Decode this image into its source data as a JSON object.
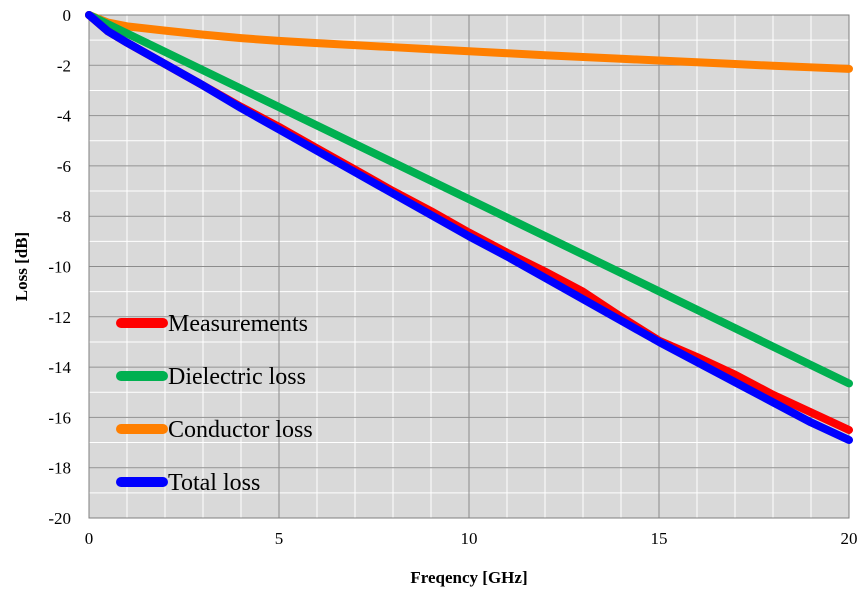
{
  "chart_data": {
    "type": "line",
    "xlabel": "Freqency [GHz]",
    "ylabel": "Loss [dB]",
    "xlim": [
      0,
      20
    ],
    "ylim": [
      -20,
      0
    ],
    "x_major_ticks": [
      0,
      5,
      10,
      15,
      20
    ],
    "y_major_ticks": [
      0,
      -2,
      -4,
      -6,
      -8,
      -10,
      -12,
      -14,
      -16,
      -18,
      -20
    ],
    "x_tick_labels": [
      "0",
      "5",
      "10",
      "15",
      "20"
    ],
    "y_tick_labels": [
      "0",
      "-2",
      "-4",
      "-6",
      "-8",
      "-10",
      "-12",
      "-14",
      "-16",
      "-18",
      "-20"
    ],
    "x_minor_step": 1,
    "y_minor_step": 1,
    "grid": true,
    "plot_background": "#d9d9d9",
    "legend_position": "lower-left",
    "series": [
      {
        "name": "Measurements",
        "color": "#ff0000",
        "x": [
          0,
          0.5,
          1,
          2,
          3,
          4,
          5,
          6,
          7,
          8,
          9,
          10,
          11,
          12,
          13,
          14,
          15,
          16,
          17,
          18,
          19,
          20
        ],
        "y": [
          0,
          -0.65,
          -1.1,
          -1.95,
          -2.8,
          -3.65,
          -4.45,
          -5.3,
          -6.15,
          -7.0,
          -7.8,
          -8.65,
          -9.45,
          -10.2,
          -11.0,
          -12.0,
          -12.95,
          -13.6,
          -14.3,
          -15.1,
          -15.8,
          -16.5
        ]
      },
      {
        "name": "Dielectric loss",
        "color": "#00b050",
        "x": [
          0,
          20
        ],
        "y": [
          0,
          -14.65
        ]
      },
      {
        "name": "Conductor loss",
        "color": "#ff7f00",
        "x": [
          0,
          0.5,
          1,
          2,
          3,
          4,
          5,
          6,
          7,
          8,
          9,
          10,
          11,
          12,
          13,
          14,
          15,
          16,
          17,
          18,
          19,
          20
        ],
        "y": [
          0,
          -0.3,
          -0.45,
          -0.62,
          -0.78,
          -0.92,
          -1.03,
          -1.12,
          -1.2,
          -1.28,
          -1.36,
          -1.44,
          -1.52,
          -1.6,
          -1.67,
          -1.74,
          -1.81,
          -1.88,
          -1.95,
          -2.02,
          -2.08,
          -2.14
        ]
      },
      {
        "name": "Total loss",
        "color": "#0000ff",
        "x": [
          0,
          0.5,
          1,
          2,
          3,
          4,
          5,
          6,
          7,
          8,
          9,
          10,
          11,
          12,
          13,
          14,
          15,
          16,
          17,
          18,
          19,
          20
        ],
        "y": [
          0,
          -0.65,
          -1.1,
          -1.95,
          -2.8,
          -3.7,
          -4.55,
          -5.4,
          -6.25,
          -7.1,
          -7.95,
          -8.8,
          -9.6,
          -10.45,
          -11.3,
          -12.15,
          -13.0,
          -13.8,
          -14.6,
          -15.4,
          -16.2,
          -16.9
        ]
      }
    ]
  }
}
